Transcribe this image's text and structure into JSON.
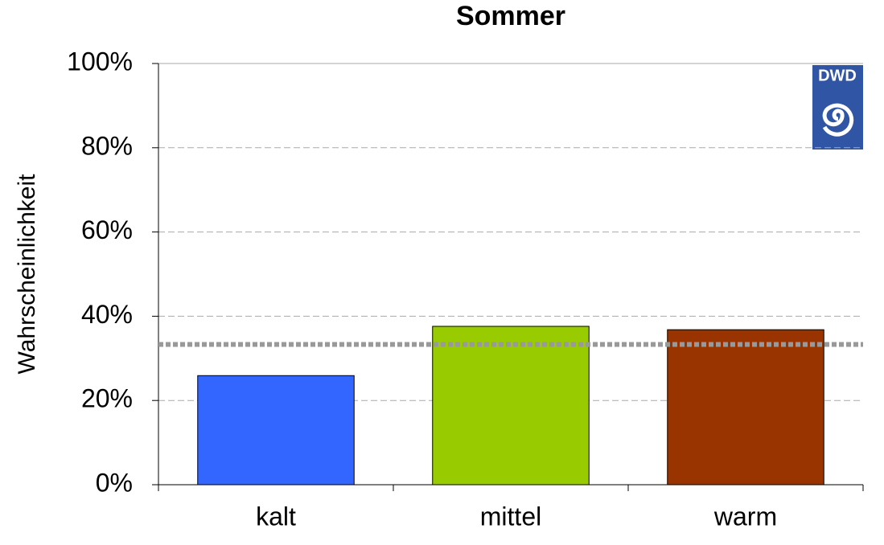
{
  "chart_data": {
    "type": "bar",
    "title": "Sommer",
    "y_label": "Wahrscheinlichkeit",
    "categories": [
      "kalt",
      "mittel",
      "warm"
    ],
    "values": [
      25.9,
      37.6,
      36.8
    ],
    "colors": [
      "#3366ff",
      "#99cc00",
      "#993300"
    ],
    "ylim": [
      0,
      100
    ],
    "yticks": [
      {
        "value": 0,
        "label": "0%"
      },
      {
        "value": 20,
        "label": "20%"
      },
      {
        "value": 40,
        "label": "40%"
      },
      {
        "value": 60,
        "label": "60%"
      },
      {
        "value": 80,
        "label": "80%"
      },
      {
        "value": 100,
        "label": "100%"
      }
    ],
    "grid": true,
    "reference_line": {
      "value": 33.3,
      "color": "#999999"
    },
    "logo": "DWD"
  }
}
